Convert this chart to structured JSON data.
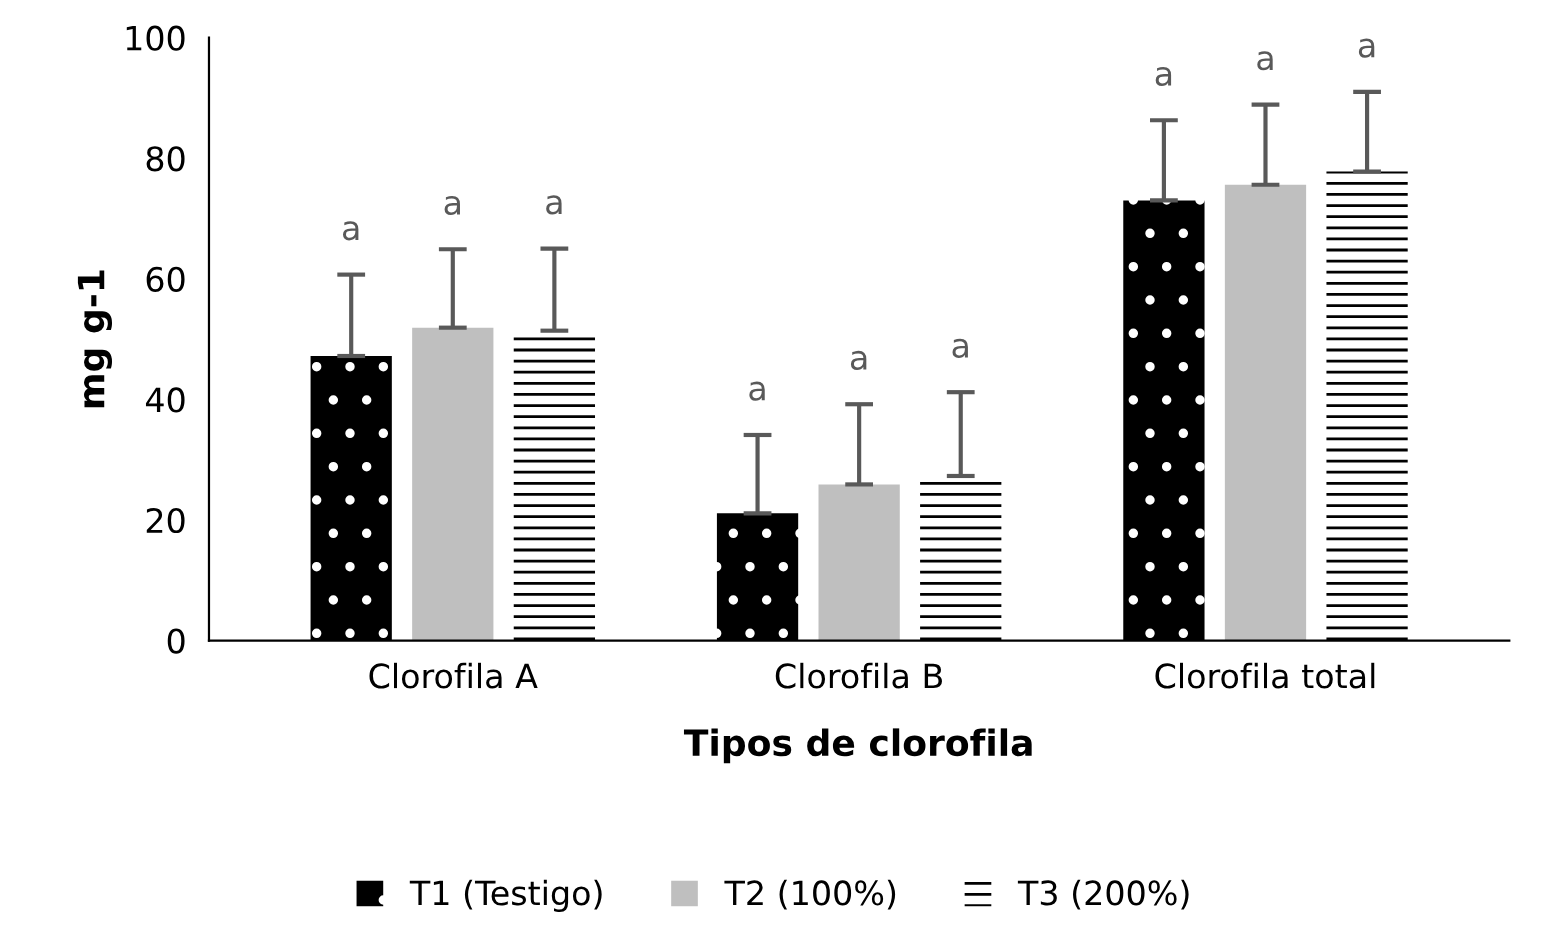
{
  "chart_data": {
    "type": "bar",
    "xlabel": "Tipos de clorofila",
    "ylabel": "mg g-1",
    "categories": [
      "Clorofila A",
      "Clorofila B",
      "Clorofila total"
    ],
    "series": [
      {
        "name": "T1 (Testigo)",
        "color": "#000000",
        "values": [
          47.2,
          21.1,
          73
        ],
        "errors": [
          13.5,
          13,
          13.3
        ]
      },
      {
        "name": "T2 (100%)",
        "color": "#bfbfbf",
        "values": [
          51.9,
          25.9,
          75.6
        ],
        "errors": [
          13,
          13.3,
          13.3
        ]
      },
      {
        "name": "T3 (200%)",
        "color": "#000000",
        "values": [
          51.4,
          27.3,
          77.8
        ],
        "errors": [
          13.6,
          13.9,
          13.2
        ]
      }
    ],
    "ylim": [
      0,
      100
    ],
    "yticks": [
      0,
      20,
      40,
      60,
      80,
      100
    ],
    "grid": false,
    "legend": "bottom",
    "annotations": [
      "a",
      "a",
      "a",
      "a",
      "a",
      "a",
      "a",
      "a",
      "a"
    ]
  }
}
